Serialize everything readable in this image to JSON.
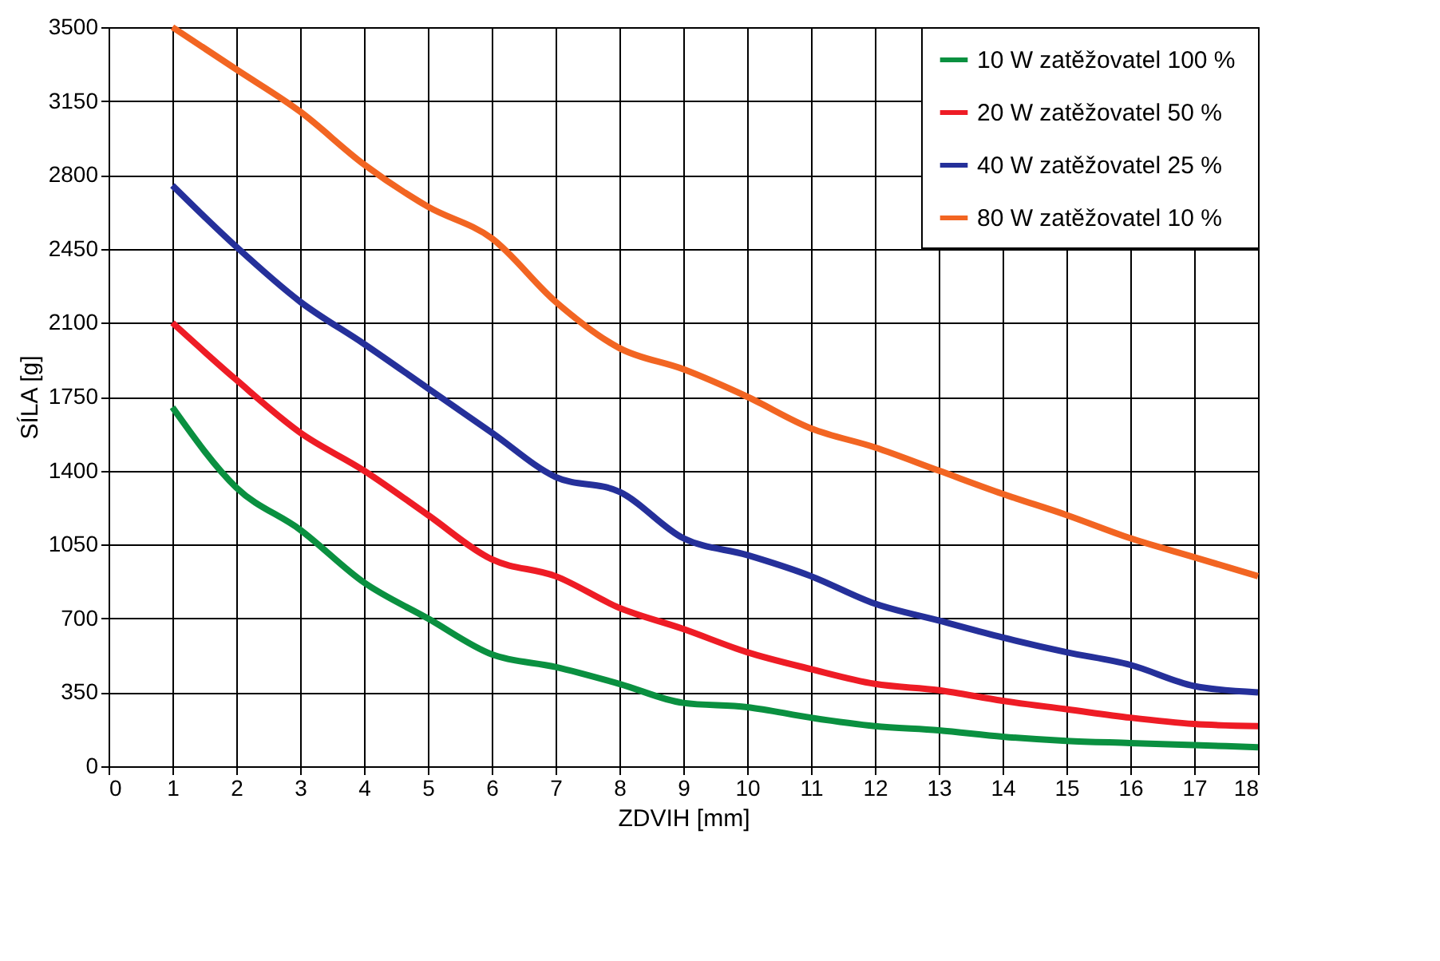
{
  "chart_data": {
    "type": "line",
    "xlabel": "ZDVIH [mm]",
    "ylabel": "SÍLA [g]",
    "x": [
      1,
      2,
      3,
      4,
      5,
      6,
      7,
      8,
      9,
      10,
      11,
      12,
      13,
      14,
      15,
      16,
      17,
      18
    ],
    "series": [
      {
        "name": "10 W  zatěžovatel 100 %",
        "color": "#0a9040",
        "values": [
          1700,
          1320,
          1120,
          870,
          700,
          530,
          470,
          390,
          300,
          280,
          230,
          190,
          170,
          140,
          120,
          110,
          100,
          90
        ]
      },
      {
        "name": "20 W  zatěžovatel 50 %",
        "color": "#ee1c25",
        "values": [
          2100,
          1830,
          1580,
          1400,
          1190,
          980,
          900,
          750,
          650,
          540,
          460,
          390,
          360,
          310,
          270,
          230,
          200,
          190
        ]
      },
      {
        "name": "40 W  zatěžovatel 25 %",
        "color": "#25309a",
        "values": [
          2750,
          2460,
          2200,
          2000,
          1790,
          1580,
          1370,
          1300,
          1080,
          1000,
          900,
          770,
          690,
          610,
          540,
          480,
          380,
          350
        ]
      },
      {
        "name": "80 W  zatěžovatel 10 %",
        "color": "#f26522",
        "values": [
          3500,
          3300,
          3100,
          2850,
          2650,
          2500,
          2200,
          1980,
          1880,
          1750,
          1600,
          1510,
          1400,
          1290,
          1190,
          1080,
          990,
          900
        ]
      }
    ],
    "xlim": [
      0,
      18
    ],
    "xticks": [
      0,
      1,
      2,
      3,
      4,
      5,
      6,
      7,
      8,
      9,
      10,
      11,
      12,
      13,
      14,
      15,
      16,
      17,
      18
    ],
    "ylim": [
      0,
      3500
    ],
    "yticks": [
      0,
      350,
      700,
      1050,
      1400,
      1750,
      2100,
      2450,
      2800,
      3150,
      3500
    ],
    "grid": true,
    "legend": "top right",
    "marker": "none",
    "line_style": "solid"
  }
}
